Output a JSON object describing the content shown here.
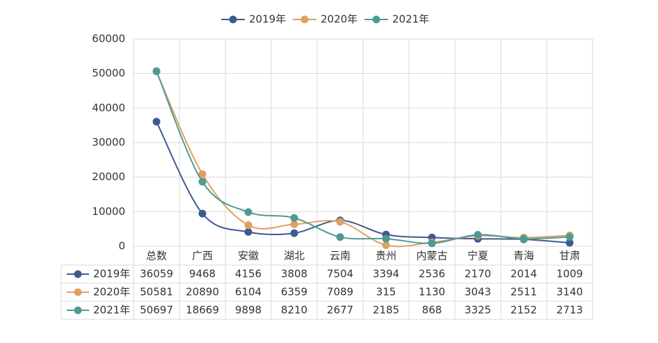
{
  "chart_data": {
    "type": "line",
    "smooth": true,
    "categories": [
      "总数",
      "广西",
      "安徽",
      "湖北",
      "云南",
      "贵州",
      "内蒙古",
      "宁夏",
      "青海",
      "甘肃"
    ],
    "series": [
      {
        "name": "2019年",
        "color": "#3f5a8f",
        "values": [
          36059,
          9468,
          4156,
          3808,
          7504,
          3394,
          2536,
          2170,
          2014,
          1009
        ]
      },
      {
        "name": "2020年",
        "color": "#e0a060",
        "values": [
          50581,
          20890,
          6104,
          6359,
          7089,
          315,
          1130,
          3043,
          2511,
          3140
        ]
      },
      {
        "name": "2021年",
        "color": "#4e9a94",
        "values": [
          50697,
          18669,
          9898,
          8210,
          2677,
          2185,
          868,
          3325,
          2152,
          2713
        ]
      }
    ],
    "ylim": [
      0,
      60000
    ],
    "yticks": [
      0,
      10000,
      20000,
      30000,
      40000,
      50000,
      60000
    ],
    "grid": true,
    "legend": "top",
    "data_table": true
  }
}
